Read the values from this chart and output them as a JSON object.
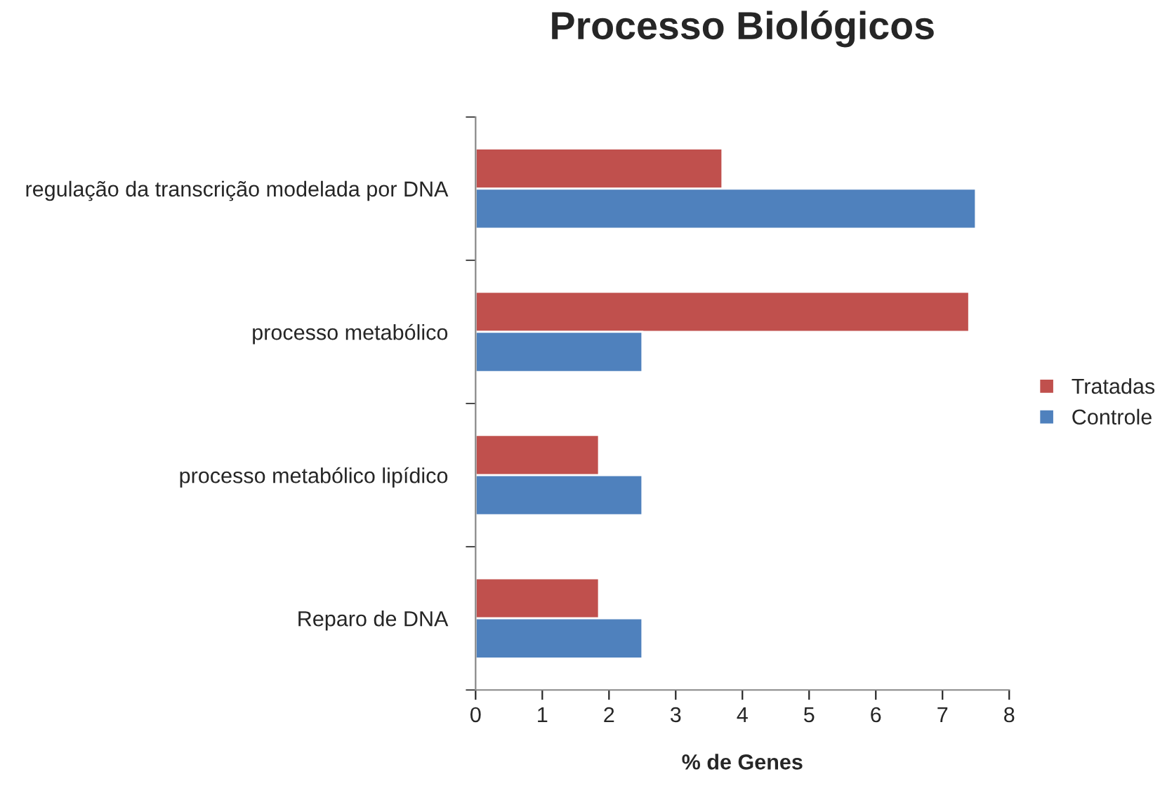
{
  "chart_data": {
    "type": "bar",
    "orientation": "horizontal",
    "title": "Processo Biológicos",
    "xlabel": "% de Genes",
    "categories": [
      "regulação da transcrição modelada por DNA",
      "processo metabólico",
      "processo metabólico lipídico",
      "Reparo de DNA"
    ],
    "series": [
      {
        "name": "Tratadas",
        "color": "#c0504d",
        "values": [
          3.7,
          7.4,
          1.85,
          1.85
        ]
      },
      {
        "name": "Controle",
        "color": "#4f81bd",
        "values": [
          7.5,
          2.5,
          2.5,
          2.5
        ]
      }
    ],
    "xlim": [
      0,
      8
    ],
    "xticks": [
      0,
      1,
      2,
      3,
      4,
      5,
      6,
      7,
      8
    ],
    "grid": false,
    "legend": "right"
  }
}
